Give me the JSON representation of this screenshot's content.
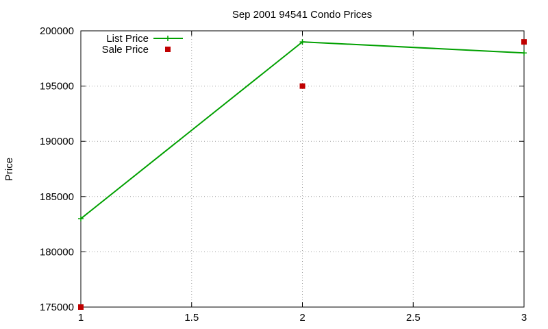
{
  "chart_data": {
    "type": "line",
    "title": "Sep 2001 94541 Condo Prices",
    "xlabel": "",
    "ylabel": "Price",
    "xlim": [
      1,
      3
    ],
    "ylim": [
      175000,
      200000
    ],
    "xticks": [
      1,
      1.5,
      2,
      2.5,
      3
    ],
    "xtick_labels": [
      "1",
      "1.5",
      "2",
      "2.5",
      "3"
    ],
    "yticks": [
      175000,
      180000,
      185000,
      190000,
      195000,
      200000
    ],
    "ytick_labels": [
      "175000",
      "180000",
      "185000",
      "190000",
      "195000",
      "200000"
    ],
    "grid": true,
    "legend_position": "top-left",
    "series": [
      {
        "name": "List Price",
        "style": "linespoints",
        "marker": "plus",
        "color": "#00a000",
        "x": [
          1,
          2,
          3
        ],
        "y": [
          183000,
          199000,
          198000
        ]
      },
      {
        "name": "Sale Price",
        "style": "points",
        "marker": "square",
        "color": "#c00000",
        "x": [
          1,
          2,
          3
        ],
        "y": [
          175000,
          195000,
          199000
        ]
      }
    ]
  }
}
